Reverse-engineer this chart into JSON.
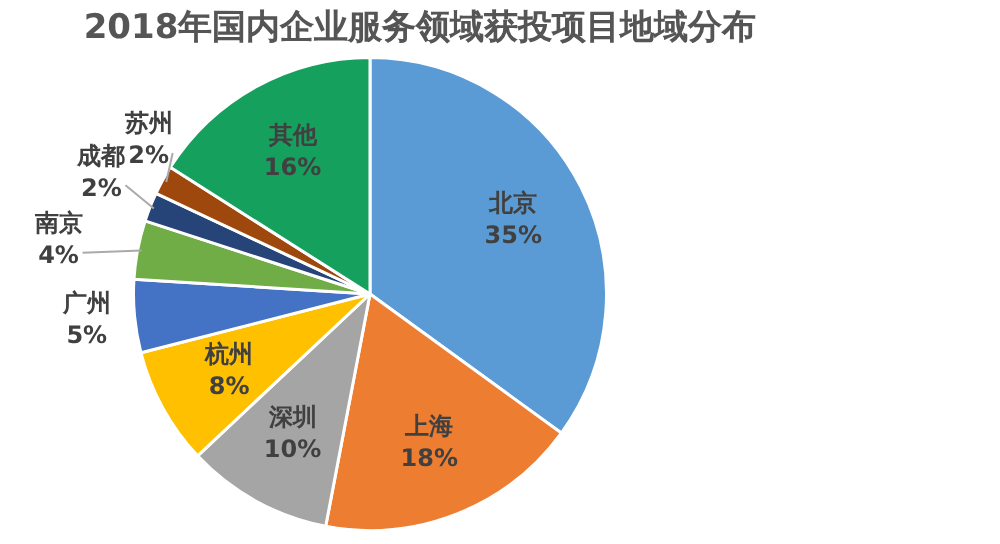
{
  "chart_data": {
    "type": "pie",
    "title": "2018年国内企业服务领域获投项目地域分布",
    "categories": [
      "北京",
      "上海",
      "深圳",
      "杭州",
      "广州",
      "南京",
      "成都",
      "苏州",
      "其他"
    ],
    "values": [
      35,
      18,
      10,
      8,
      5,
      4,
      2,
      2,
      16
    ],
    "value_labels": [
      "35%",
      "18%",
      "10%",
      "8%",
      "5%",
      "4%",
      "2%",
      "2%",
      "16%"
    ],
    "colors": [
      "#5b9bd5",
      "#ed7d31",
      "#a5a5a5",
      "#ffc000",
      "#4472c4",
      "#70ad47",
      "#264478",
      "#9e480e",
      "#16a05e"
    ],
    "legend": false
  }
}
